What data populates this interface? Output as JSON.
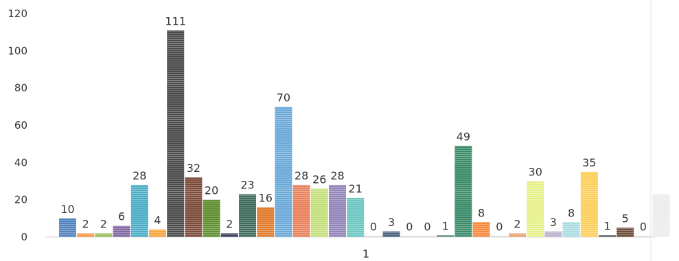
{
  "chart_data": {
    "type": "bar",
    "categories": [
      "1"
    ],
    "ylim": [
      0,
      120
    ],
    "yticks": [
      0,
      20,
      40,
      60,
      80,
      100,
      120
    ],
    "grid": false,
    "legend": "none",
    "series": [
      {
        "value": 10,
        "color": "#4f81bd"
      },
      {
        "value": 2,
        "color": "#f79646"
      },
      {
        "value": 2,
        "color": "#9bbb59"
      },
      {
        "value": 6,
        "color": "#8064a2"
      },
      {
        "value": 28,
        "color": "#4bacc6"
      },
      {
        "value": 4,
        "color": "#f9a33a"
      },
      {
        "value": 111,
        "color": "#4a4a4a"
      },
      {
        "value": 32,
        "color": "#7b4b3a"
      },
      {
        "value": 20,
        "color": "#5e8d2e"
      },
      {
        "value": 2,
        "color": "#3b3b5a"
      },
      {
        "value": 23,
        "color": "#3f6a5a"
      },
      {
        "value": 16,
        "color": "#e07a2a"
      },
      {
        "value": 70,
        "color": "#6aa8d8"
      },
      {
        "value": 28,
        "color": "#e8805a"
      },
      {
        "value": 26,
        "color": "#c4df7a"
      },
      {
        "value": 28,
        "color": "#9284b8"
      },
      {
        "value": 21,
        "color": "#6cc6c0"
      },
      {
        "value": 0,
        "color": "#cccccc"
      },
      {
        "value": 3,
        "color": "#4a5f7a"
      },
      {
        "value": 0,
        "color": "#cccccc"
      },
      {
        "value": 0,
        "color": "#cccccc"
      },
      {
        "value": 1,
        "color": "#5d8a7a"
      },
      {
        "value": 49,
        "color": "#3a8a6a"
      },
      {
        "value": 8,
        "color": "#f7883a"
      },
      {
        "value": 0,
        "color": "#cccccc"
      },
      {
        "value": 2,
        "color": "#e8a070"
      },
      {
        "value": 30,
        "color": "#e6f08a"
      },
      {
        "value": 3,
        "color": "#b8b0cc"
      },
      {
        "value": 8,
        "color": "#a8dce0"
      },
      {
        "value": 35,
        "color": "#fbcf5a"
      },
      {
        "value": 1,
        "color": "#5a5a5a"
      },
      {
        "value": 5,
        "color": "#6e4a3a"
      },
      {
        "value": 0,
        "color": "#cccccc"
      },
      {
        "value": 23,
        "color": "#ececec"
      }
    ],
    "data_labels_shown": [
      true,
      true,
      true,
      true,
      true,
      true,
      true,
      true,
      true,
      true,
      true,
      true,
      true,
      true,
      true,
      true,
      true,
      true,
      true,
      true,
      true,
      true,
      true,
      true,
      true,
      true,
      true,
      true,
      true,
      true,
      true,
      true,
      true,
      false
    ]
  }
}
